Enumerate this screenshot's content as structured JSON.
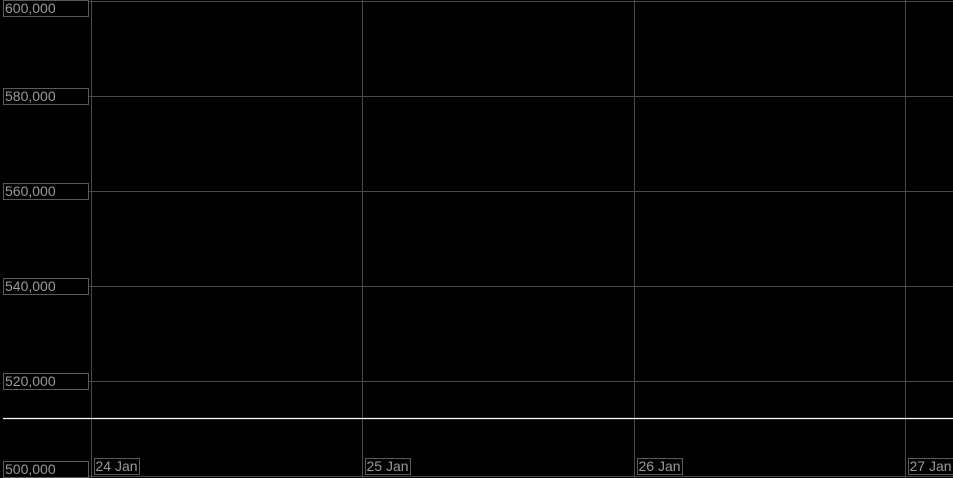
{
  "chart_data": {
    "type": "line",
    "title": "",
    "xlabel": "",
    "ylabel": "",
    "ylim": [
      500000,
      600000
    ],
    "y_ticks": [
      "600,000",
      "580,000",
      "560,000",
      "540,000",
      "520,000",
      "500,000"
    ],
    "y_tick_values": [
      600000,
      580000,
      560000,
      540000,
      520000,
      500000
    ],
    "x_ticks": [
      "24 Jan",
      "25 Jan",
      "26 Jan",
      "27 Jan"
    ],
    "grid": true,
    "background": "#000000",
    "grid_color": "#4a4a4a",
    "series": [
      {
        "x": [
          "24 Jan",
          "25 Jan",
          "26 Jan",
          "27 Jan"
        ],
        "values": [
          512200,
          512200,
          512200,
          512200
        ],
        "color": "#ffffff"
      }
    ]
  }
}
